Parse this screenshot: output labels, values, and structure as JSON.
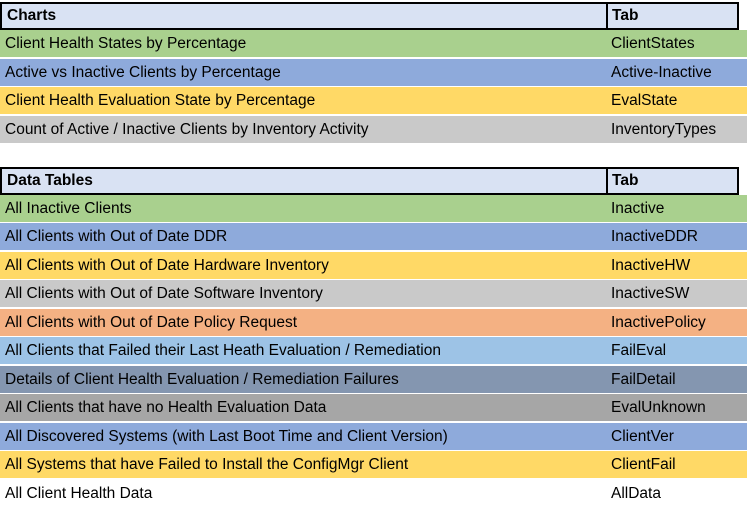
{
  "colors": {
    "header_fill": "#D9E2F3",
    "border": "#000000",
    "text": "#000000",
    "green": "#A9D08E",
    "blue": "#8EAADB",
    "gold": "#FFD966",
    "light_gray": "#C9C9C9",
    "orange": "#F4B183",
    "light_blue": "#9DC3E6",
    "slate_blue": "#8496B0",
    "medium_gray": "#A6A6A6",
    "white": "#FFFFFF"
  },
  "sections": [
    {
      "title": "Charts",
      "tab_header": "Tab",
      "rows": [
        {
          "label": "Client Health States by Percentage",
          "tab": "ClientStates",
          "color": "#A9D08E"
        },
        {
          "label": "Active vs Inactive Clients by Percentage",
          "tab": "Active-Inactive",
          "color": "#8EAADB"
        },
        {
          "label": "Client Health Evaluation State by Percentage",
          "tab": "EvalState",
          "color": "#FFD966"
        },
        {
          "label": "Count of Active / Inactive Clients by Inventory Activity",
          "tab": "InventoryTypes",
          "color": "#C9C9C9"
        }
      ]
    },
    {
      "title": "Data Tables",
      "tab_header": "Tab",
      "rows": [
        {
          "label": "All Inactive Clients",
          "tab": "Inactive",
          "color": "#A9D08E"
        },
        {
          "label": "All Clients with Out of Date DDR",
          "tab": "InactiveDDR",
          "color": "#8EAADB"
        },
        {
          "label": "All Clients with Out of Date Hardware Inventory",
          "tab": "InactiveHW",
          "color": "#FFD966"
        },
        {
          "label": "All Clients with Out of Date Software Inventory",
          "tab": "InactiveSW",
          "color": "#C9C9C9"
        },
        {
          "label": "All Clients with Out of Date Policy Request",
          "tab": "InactivePolicy",
          "color": "#F4B183"
        },
        {
          "label": "All Clients that Failed their Last Heath Evaluation / Remediation",
          "tab": "FailEval",
          "color": "#9DC3E6"
        },
        {
          "label": "Details of Client Health Evaluation / Remediation Failures",
          "tab": "FailDetail",
          "color": "#8496B0"
        },
        {
          "label": "All Clients that have no Health Evaluation Data",
          "tab": "EvalUnknown",
          "color": "#A6A6A6"
        },
        {
          "label": "All Discovered Systems (with Last Boot Time and Client Version)",
          "tab": "ClientVer",
          "color": "#8EAADB"
        },
        {
          "label": "All Systems that have Failed to Install the ConfigMgr Client",
          "tab": "ClientFail",
          "color": "#FFD966"
        },
        {
          "label": "All Client Health Data",
          "tab": "AllData",
          "color": "#FFFFFF"
        }
      ]
    }
  ]
}
